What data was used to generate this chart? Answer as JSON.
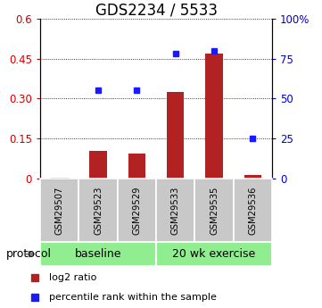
{
  "title": "GDS2234 / 5533",
  "samples": [
    "GSM29507",
    "GSM29523",
    "GSM29529",
    "GSM29533",
    "GSM29535",
    "GSM29536"
  ],
  "log2_ratio": [
    0.003,
    0.105,
    0.095,
    0.325,
    0.47,
    0.013
  ],
  "percentile_rank_pct": [
    null,
    55,
    55,
    78,
    80,
    25
  ],
  "baseline_n": 3,
  "exercise_n": 3,
  "baseline_label": "baseline",
  "exercise_label": "20 wk exercise",
  "protocol_label": "protocol",
  "legend1_label": "log2 ratio",
  "legend2_label": "percentile rank within the sample",
  "bar_color": "#b22222",
  "dot_color": "#1a1aff",
  "baseline_bg": "#90EE90",
  "exercise_bg": "#90EE90",
  "sample_bg": "#c8c8c8",
  "ylim_left": [
    0,
    0.6
  ],
  "yticks_left": [
    0,
    0.15,
    0.3,
    0.45,
    0.6
  ],
  "ylim_right": [
    0,
    100
  ],
  "yticks_right": [
    0,
    25,
    50,
    75,
    100
  ],
  "ylabel_left_color": "#cc0000",
  "ylabel_right_color": "#0000cc",
  "title_fontsize": 12,
  "tick_fontsize": 8.5,
  "legend_fontsize": 8
}
